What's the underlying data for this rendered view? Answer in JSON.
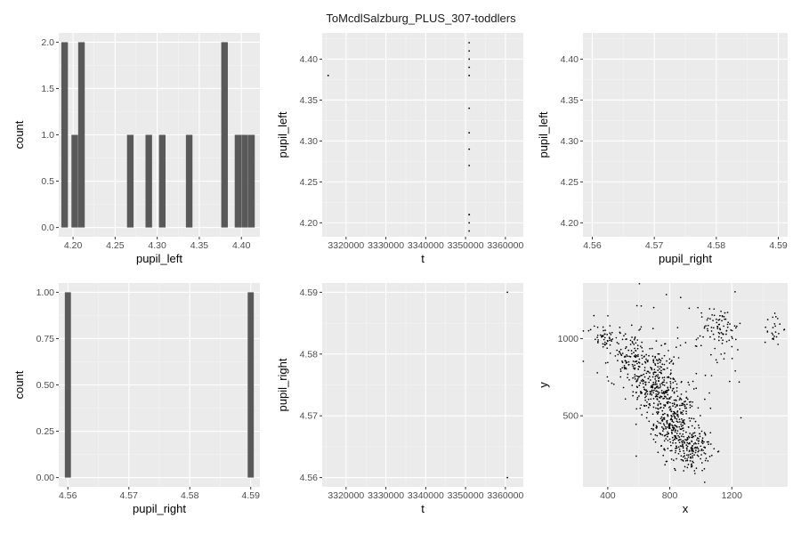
{
  "title": "ToMcdlSalzburg_PLUS_307-toddlers",
  "colors": {
    "panel_bg": "#ebebeb",
    "grid_major": "#ffffff",
    "bar_fill": "#595959",
    "point": "#000000"
  },
  "chart_data": [
    {
      "type": "bar",
      "panel": "hist-pupil-left",
      "title": "",
      "xlabel": "pupil_left",
      "ylabel": "count",
      "xlim": [
        4.183,
        4.422
      ],
      "ylim": [
        -0.1,
        2.1
      ],
      "x_ticks": [
        4.2,
        4.25,
        4.3,
        4.35,
        4.4
      ],
      "x_tick_labels": [
        "4.20",
        "4.25",
        "4.30",
        "4.35",
        "4.40"
      ],
      "y_ticks": [
        0,
        0.5,
        1,
        1.5,
        2
      ],
      "y_tick_labels": [
        "0.0",
        "0.5",
        "1.0",
        "1.5",
        "2.0"
      ],
      "bin_width": 0.0078,
      "bins": [
        {
          "center": 4.19,
          "count": 2
        },
        {
          "center": 4.202,
          "count": 1
        },
        {
          "center": 4.21,
          "count": 2
        },
        {
          "center": 4.268,
          "count": 1
        },
        {
          "center": 4.29,
          "count": 1
        },
        {
          "center": 4.306,
          "count": 1
        },
        {
          "center": 4.338,
          "count": 1
        },
        {
          "center": 4.38,
          "count": 2
        },
        {
          "center": 4.396,
          "count": 1
        },
        {
          "center": 4.404,
          "count": 1
        },
        {
          "center": 4.412,
          "count": 1
        }
      ]
    },
    {
      "type": "scatter",
      "panel": "scatter-t-pupil-left",
      "title": "",
      "xlabel": "t",
      "ylabel": "pupil_left",
      "xlim": [
        3314000,
        3364500
      ],
      "ylim": [
        4.183,
        4.432
      ],
      "x_ticks": [
        3320000,
        3330000,
        3340000,
        3350000,
        3360000
      ],
      "x_tick_labels": [
        "3320000",
        "3330000",
        "3340000",
        "3350000",
        "3360000"
      ],
      "y_ticks": [
        4.2,
        4.25,
        4.3,
        4.35,
        4.4
      ],
      "y_tick_labels": [
        "4.20",
        "4.25",
        "4.30",
        "4.35",
        "4.40"
      ],
      "x": [
        3315500,
        3350900,
        3350900,
        3350900,
        3350900,
        3350900,
        3350900,
        3350900,
        3350900,
        3350900,
        3350900,
        3350900,
        3350900,
        3350900
      ],
      "y": [
        4.38,
        4.42,
        4.41,
        4.4,
        4.39,
        4.38,
        4.34,
        4.31,
        4.29,
        4.27,
        4.21,
        4.21,
        4.2,
        4.19
      ]
    },
    {
      "type": "scatter",
      "panel": "scatter-pupil-right-left",
      "title": "",
      "xlabel": "pupil_right",
      "ylabel": "pupil_left",
      "xlim": [
        4.5585,
        4.5915
      ],
      "ylim": [
        4.183,
        4.432
      ],
      "x_ticks": [
        4.56,
        4.57,
        4.58,
        4.59
      ],
      "x_tick_labels": [
        "4.56",
        "4.57",
        "4.58",
        "4.59"
      ],
      "y_ticks": [
        4.2,
        4.25,
        4.3,
        4.35,
        4.4
      ],
      "y_tick_labels": [
        "4.20",
        "4.25",
        "4.30",
        "4.35",
        "4.40"
      ],
      "x": [],
      "y": []
    },
    {
      "type": "bar",
      "panel": "hist-pupil-right",
      "title": "",
      "xlabel": "pupil_right",
      "ylabel": "count",
      "xlim": [
        4.5585,
        4.5915
      ],
      "ylim": [
        -0.05,
        1.05
      ],
      "x_ticks": [
        4.56,
        4.57,
        4.58,
        4.59
      ],
      "x_tick_labels": [
        "4.56",
        "4.57",
        "4.58",
        "4.59"
      ],
      "y_ticks": [
        0,
        0.25,
        0.5,
        0.75,
        1
      ],
      "y_tick_labels": [
        "0.00",
        "0.25",
        "0.50",
        "0.75",
        "1.00"
      ],
      "bin_width": 0.001,
      "bins": [
        {
          "center": 4.56,
          "count": 1
        },
        {
          "center": 4.59,
          "count": 1
        }
      ]
    },
    {
      "type": "scatter",
      "panel": "scatter-t-pupil-right",
      "title": "",
      "xlabel": "t",
      "ylabel": "pupil_right",
      "xlim": [
        3314000,
        3364500
      ],
      "ylim": [
        4.5585,
        4.5915
      ],
      "x_ticks": [
        3320000,
        3330000,
        3340000,
        3350000,
        3360000
      ],
      "x_tick_labels": [
        "3320000",
        "3330000",
        "3340000",
        "3350000",
        "3360000"
      ],
      "y_ticks": [
        4.56,
        4.57,
        4.58,
        4.59
      ],
      "y_tick_labels": [
        "4.56",
        "4.57",
        "4.58",
        "4.59"
      ],
      "x": [
        3360500,
        3360500
      ],
      "y": [
        4.59,
        4.56
      ]
    },
    {
      "type": "scatter",
      "panel": "scatter-x-y",
      "title": "",
      "xlabel": "x",
      "ylabel": "y",
      "xlim": [
        240,
        1560
      ],
      "ylim": [
        40,
        1360
      ],
      "x_ticks": [
        400,
        800,
        1200
      ],
      "x_tick_labels": [
        "400",
        "800",
        "1200"
      ],
      "y_ticks": [
        500,
        1000
      ],
      "y_tick_labels": [
        "500",
        "1000"
      ],
      "cloud_note": "approx. 1000 gaze samples; clusters listed as center, spread, count",
      "clusters": [
        {
          "cx": 700,
          "cy": 700,
          "sx": 75,
          "sy": 110,
          "n": 250
        },
        {
          "cx": 830,
          "cy": 460,
          "sx": 65,
          "sy": 110,
          "n": 300
        },
        {
          "cx": 950,
          "cy": 280,
          "sx": 55,
          "sy": 70,
          "n": 150
        },
        {
          "cx": 550,
          "cy": 880,
          "sx": 70,
          "sy": 80,
          "n": 120
        },
        {
          "cx": 370,
          "cy": 1010,
          "sx": 50,
          "sy": 40,
          "n": 50
        },
        {
          "cx": 1130,
          "cy": 1080,
          "sx": 55,
          "sy": 65,
          "n": 70
        },
        {
          "cx": 1470,
          "cy": 1070,
          "sx": 30,
          "sy": 60,
          "n": 25
        },
        {
          "cx": 900,
          "cy": 900,
          "sx": 250,
          "sy": 220,
          "n": 70
        }
      ]
    }
  ]
}
